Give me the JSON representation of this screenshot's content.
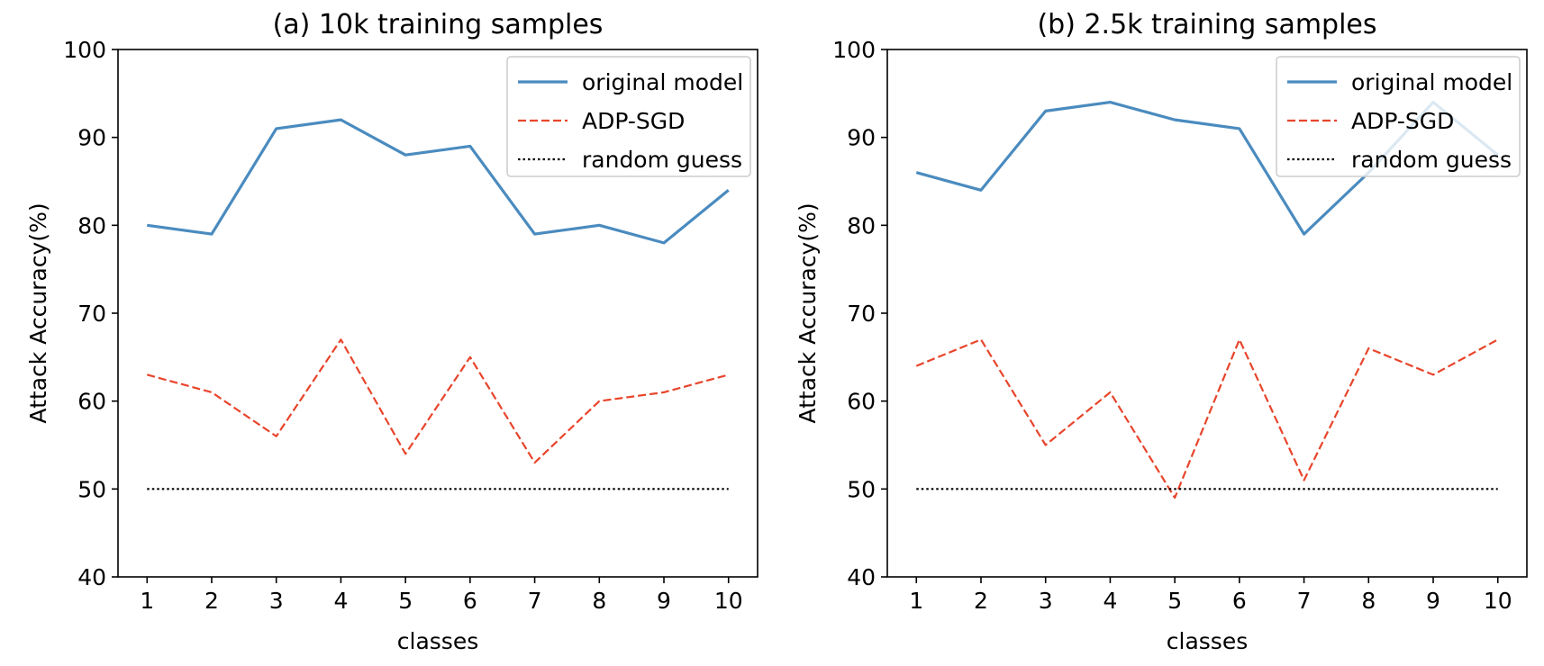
{
  "chart_data": [
    {
      "type": "line",
      "title": "(a) 10k training samples",
      "xlabel": "classes",
      "ylabel": "Attack Accuracy(%)",
      "x": [
        1,
        2,
        3,
        4,
        5,
        6,
        7,
        8,
        9,
        10
      ],
      "xticks": [
        "1",
        "2",
        "3",
        "4",
        "5",
        "6",
        "7",
        "8",
        "9",
        "10"
      ],
      "yticks": [
        "40",
        "50",
        "60",
        "70",
        "80",
        "90",
        "100"
      ],
      "xlim": [
        0.55,
        10.45
      ],
      "ylim": [
        40,
        100
      ],
      "grid": false,
      "legend_position": "top-right",
      "series": [
        {
          "name": "original model",
          "color": "#4a8bbf",
          "style": "solid",
          "values": [
            80,
            79,
            91,
            92,
            88,
            89,
            79,
            80,
            78,
            84
          ]
        },
        {
          "name": "ADP-SGD",
          "color": "#e8452c",
          "style": "dashed",
          "values": [
            63,
            61,
            56,
            67,
            54,
            65,
            53,
            60,
            61,
            63
          ]
        },
        {
          "name": "random guess",
          "color": "#000000",
          "style": "dotted",
          "values": [
            50,
            50,
            50,
            50,
            50,
            50,
            50,
            50,
            50,
            50
          ]
        }
      ]
    },
    {
      "type": "line",
      "title": "(b) 2.5k training samples",
      "xlabel": "classes",
      "ylabel": "Attack Accuracy(%)",
      "x": [
        1,
        2,
        3,
        4,
        5,
        6,
        7,
        8,
        9,
        10
      ],
      "xticks": [
        "1",
        "2",
        "3",
        "4",
        "5",
        "6",
        "7",
        "8",
        "9",
        "10"
      ],
      "yticks": [
        "40",
        "50",
        "60",
        "70",
        "80",
        "90",
        "100"
      ],
      "xlim": [
        0.55,
        10.45
      ],
      "ylim": [
        40,
        100
      ],
      "grid": false,
      "legend_position": "top-right",
      "series": [
        {
          "name": "original model",
          "color": "#4a8bbf",
          "style": "solid",
          "values": [
            86,
            84,
            93,
            94,
            92,
            91,
            79,
            86,
            94,
            88
          ]
        },
        {
          "name": "ADP-SGD",
          "color": "#e8452c",
          "style": "dashed",
          "values": [
            64,
            67,
            55,
            61,
            49,
            67,
            51,
            66,
            63,
            67
          ]
        },
        {
          "name": "random guess",
          "color": "#000000",
          "style": "dotted",
          "values": [
            50,
            50,
            50,
            50,
            50,
            50,
            50,
            50,
            50,
            50
          ]
        }
      ]
    }
  ]
}
